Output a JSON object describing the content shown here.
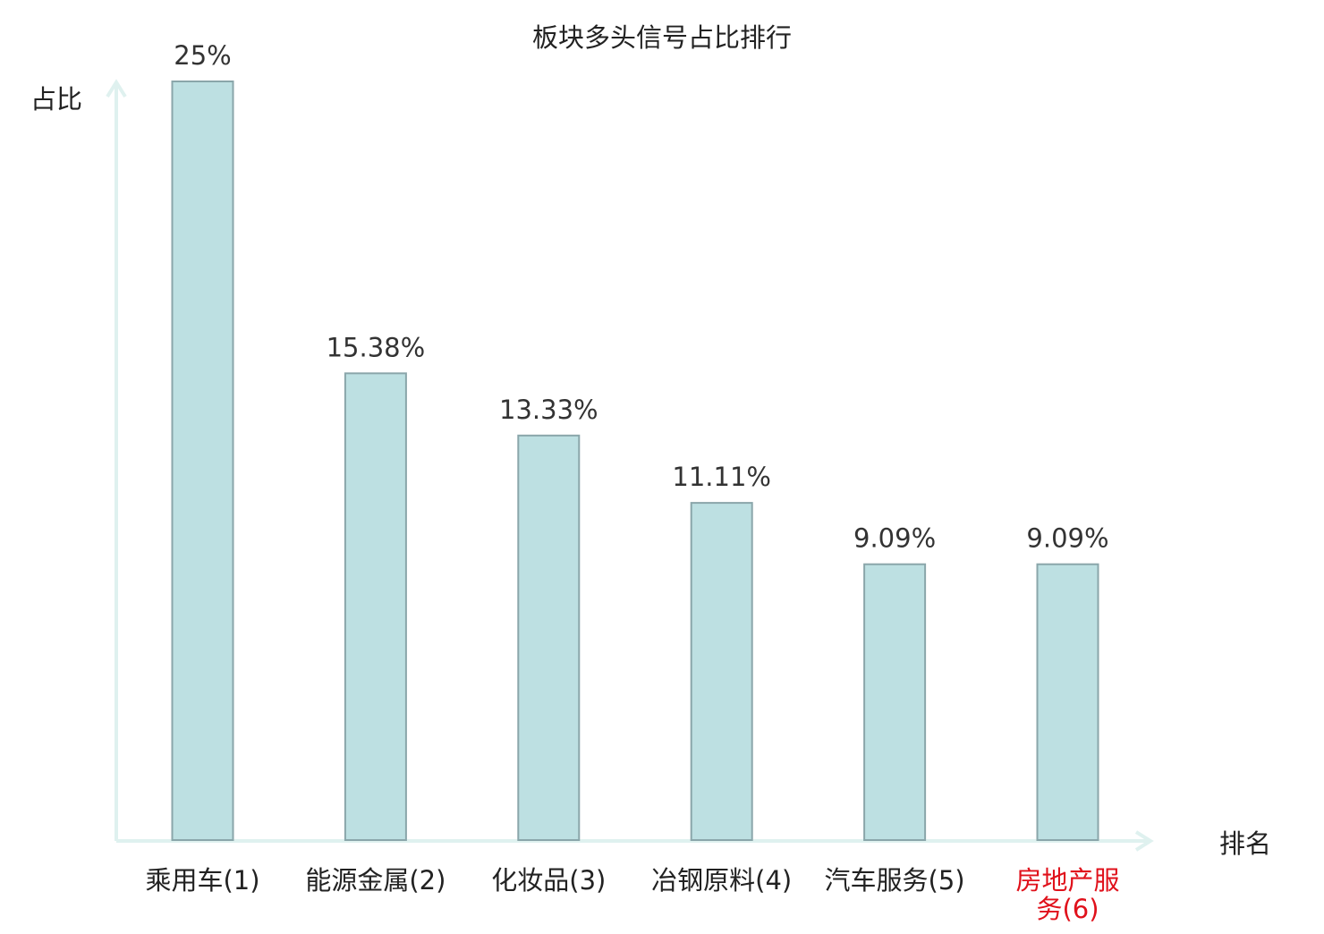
{
  "chart_data": {
    "type": "bar",
    "title": "板块多头信号占比排行",
    "xlabel": "排名",
    "ylabel": "占比",
    "categories": [
      {
        "name": "乘用车",
        "rank": "(1)",
        "lines": [
          "乘用车(1)"
        ],
        "highlight": false
      },
      {
        "name": "能源金属",
        "rank": "(2)",
        "lines": [
          "能源金属(2)"
        ],
        "highlight": false
      },
      {
        "name": "化妆品",
        "rank": "(3)",
        "lines": [
          "化妆品(3)"
        ],
        "highlight": false
      },
      {
        "name": "冶钢原料",
        "rank": "(4)",
        "lines": [
          "冶钢原料(4)"
        ],
        "highlight": false
      },
      {
        "name": "汽车服务",
        "rank": "(5)",
        "lines": [
          "汽车服务(5)"
        ],
        "highlight": false
      },
      {
        "name": "房地产服务",
        "rank": "(6)",
        "lines": [
          "房地产服",
          "务(6)"
        ],
        "highlight": true
      }
    ],
    "values": [
      25,
      15.38,
      13.33,
      11.11,
      9.09,
      9.09
    ],
    "value_labels": [
      "25%",
      "15.38%",
      "13.33%",
      "11.11%",
      "9.09%",
      "9.09%"
    ],
    "ylim": [
      0,
      25
    ],
    "grid": false,
    "legend": "none",
    "colors": {
      "bar_fill": "#bde0e2",
      "bar_stroke": "#8aa6aa",
      "axis": "#dff1ef",
      "text": "#333333",
      "label_text": "#222222",
      "highlight_text": "#e0111b"
    }
  }
}
